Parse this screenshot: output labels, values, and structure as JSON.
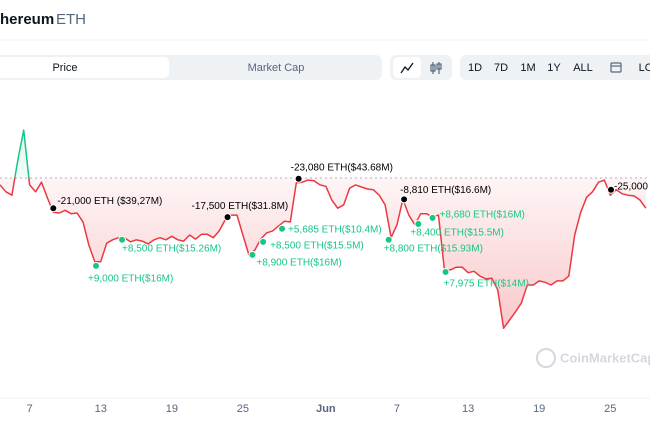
{
  "header": {
    "title": "hereum",
    "symbol": "ETH"
  },
  "tabs": [
    "Price",
    "Market Cap"
  ],
  "time_ranges": [
    "1D",
    "7D",
    "1M",
    "1Y",
    "ALL",
    "LO"
  ],
  "watermark": "CoinMarketCap",
  "chart_data": {
    "type": "line",
    "x": [
      4.5,
      5,
      5.5,
      6,
      6.5,
      7,
      7.5,
      8,
      8.5,
      9,
      9.5,
      10,
      10.5,
      11,
      11.5,
      12,
      12.5,
      13,
      13.5,
      14,
      14.5,
      15,
      15.5,
      16,
      16.5,
      17,
      17.5,
      18,
      18.5,
      19,
      19.5,
      20,
      20.5,
      21,
      21.5,
      22,
      22.5,
      23,
      23.5,
      24,
      24.5,
      25,
      25.5,
      26,
      26.5,
      27,
      27.5,
      28,
      28.5,
      29,
      29.5,
      30,
      30.5,
      31,
      31.5,
      32,
      32.5,
      33,
      33.5,
      34,
      34.5,
      35,
      35.5,
      36,
      36.5,
      37,
      37.5,
      38,
      38.5,
      39,
      39.5,
      40,
      40.5,
      41,
      41.5,
      42,
      42.5,
      43,
      43.5,
      44,
      44.5,
      45,
      45.5,
      46,
      46.5,
      47,
      47.5,
      48,
      48.5,
      49,
      49.5,
      50,
      50.5,
      51,
      51.5,
      52,
      52.5,
      53,
      53.5,
      54,
      54.5,
      55,
      55.5,
      56,
      56.5,
      57,
      57.5,
      58,
      58.5,
      59
    ],
    "series": [
      {
        "color": "#ea3943",
        "color_above": "#16c784",
        "values": [
          1882,
          1872,
          1867,
          1918,
          1962,
          1882,
          1872,
          1886,
          1863,
          1842,
          1841,
          1845,
          1840,
          1841,
          1828,
          1794,
          1770,
          1770,
          1797,
          1802,
          1805,
          1805,
          1799,
          1802,
          1800,
          1796,
          1802,
          1805,
          1802,
          1807,
          1802,
          1800,
          1809,
          1803,
          1810,
          1810,
          1805,
          1815,
          1831,
          1838,
          1838,
          1809,
          1780,
          1787,
          1803,
          1812,
          1815,
          1822,
          1829,
          1828,
          1885,
          1886,
          1889,
          1888,
          1882,
          1880,
          1860,
          1848,
          1853,
          1877,
          1882,
          1879,
          1876,
          1875,
          1867,
          1853,
          1805,
          1824,
          1861,
          1838,
          1824,
          1840,
          1840,
          1835,
          1838,
          1758,
          1758,
          1762,
          1762,
          1754,
          1756,
          1749,
          1745,
          1746,
          1729,
          1673,
          1685,
          1697,
          1710,
          1736,
          1736,
          1742,
          1740,
          1736,
          1742,
          1742,
          1749,
          1809,
          1842,
          1864,
          1872,
          1886,
          1889,
          1867,
          1875,
          1869,
          1867,
          1866,
          1860,
          1848
        ]
      }
    ],
    "baseline": 1892,
    "xlim": [
      4.5,
      59.35
    ],
    "ylim": [
      1650,
      2000
    ],
    "xticks": [
      7,
      13,
      19,
      25,
      {
        "value": 32,
        "label": "Jun"
      },
      {
        "value": 38,
        "label": "7"
      },
      {
        "value": 44,
        "label": "13"
      },
      {
        "value": 50,
        "label": "19"
      },
      {
        "value": 56,
        "label": "25"
      }
    ],
    "annotations": [
      {
        "text": "-21,000 ETH ($39,27M)",
        "x": 9.0,
        "y": 1848,
        "color": "#000000"
      },
      {
        "text": "+9,000 ETH($16M)",
        "x": 12.6,
        "y": 1764,
        "color": "#16c784"
      },
      {
        "text": "+8,500 ETH($15.26M)",
        "x": 14.8,
        "y": 1802,
        "color": "#16c784"
      },
      {
        "text": "-17,500 ETH($31.8M)",
        "x": 23.7,
        "y": 1835,
        "color": "#000000"
      },
      {
        "text": "+8,900 ETH($16M)",
        "x": 25.8,
        "y": 1780,
        "color": "#16c784"
      },
      {
        "text": "+8,500 ETH($15.5M)",
        "x": 26.7,
        "y": 1799,
        "color": "#16c784"
      },
      {
        "text": "+5,685 ETH($10.4M)",
        "x": 28.3,
        "y": 1818,
        "color": "#16c784"
      },
      {
        "text": "-23,080 ETH($43.68M)",
        "x": 29.7,
        "y": 1891,
        "color": "#000000"
      },
      {
        "text": "-8,810 ETH($16.6M)",
        "x": 38.6,
        "y": 1861,
        "color": "#000000"
      },
      {
        "text": "+8,800 ETH($15.93M)",
        "x": 37.3,
        "y": 1802,
        "color": "#16c784"
      },
      {
        "text": "+8,400 ETH($15.5M)",
        "x": 39.8,
        "y": 1825,
        "color": "#16c784"
      },
      {
        "text": "+8,680 ETH($16M)",
        "x": 41.0,
        "y": 1834,
        "color": "#16c784"
      },
      {
        "text": "+7,975 ETH($14M)",
        "x": 42.1,
        "y": 1755,
        "color": "#16c784"
      },
      {
        "text": "-25,000",
        "x": 56.06,
        "y": 1875,
        "color": "#000000"
      }
    ]
  }
}
